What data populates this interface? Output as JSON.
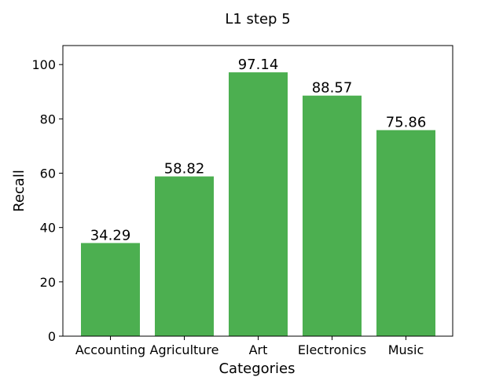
{
  "chart_data": {
    "type": "bar",
    "title": "L1 step 5",
    "xlabel": "Categories",
    "ylabel": "Recall",
    "categories": [
      "Accounting",
      "Agriculture",
      "Art",
      "Electronics",
      "Music"
    ],
    "values": [
      34.29,
      58.82,
      97.14,
      88.57,
      75.86
    ],
    "value_labels": [
      "34.29",
      "58.82",
      "97.14",
      "88.57",
      "75.86"
    ],
    "ylim": [
      0,
      107
    ],
    "yticks": [
      0,
      20,
      40,
      60,
      80,
      100
    ],
    "grid": false,
    "bar_color": "#4caf50"
  }
}
